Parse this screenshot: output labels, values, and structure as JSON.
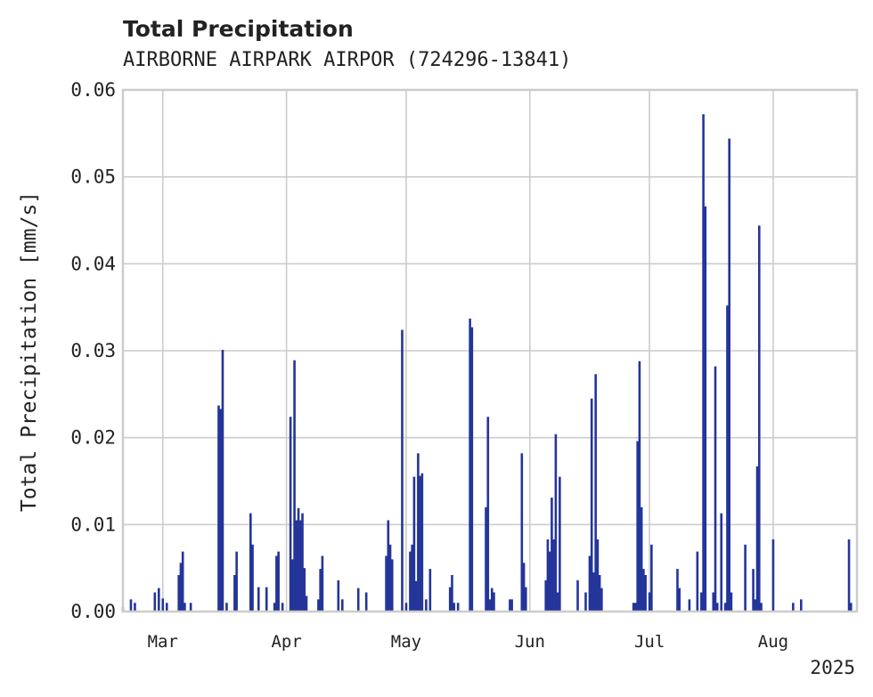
{
  "chart_data": {
    "type": "bar",
    "title": "Total Precipitation",
    "subtitle": "AIRBORNE AIRPARK AIRPOR (724296-13841)",
    "ylabel": "Total Precipitation [mm/s]",
    "xlabel": "",
    "ylim": [
      0,
      0.06
    ],
    "yticks": [
      "0.00",
      "0.01",
      "0.02",
      "0.03",
      "0.04",
      "0.05",
      "0.06"
    ],
    "xlim": [
      "2025-02-19",
      "2025-08-22"
    ],
    "xticks": [
      {
        "date": "2025-03-01",
        "label": "Mar"
      },
      {
        "date": "2025-04-01",
        "label": "Apr"
      },
      {
        "date": "2025-05-01",
        "label": "May"
      },
      {
        "date": "2025-06-01",
        "label": "Jun"
      },
      {
        "date": "2025-07-01",
        "label": "Jul"
      },
      {
        "date": "2025-08-01",
        "label": "Aug"
      }
    ],
    "x_offset_label": "2025",
    "grid": true,
    "bar_color": "#24359a",
    "series": [
      {
        "points": [
          [
            "2025-02-19",
            0.0005
          ],
          [
            "2025-02-21",
            0.0014
          ],
          [
            "2025-02-22",
            0.001
          ],
          [
            "2025-02-27",
            0.0022
          ],
          [
            "2025-02-28",
            0.0027
          ],
          [
            "2025-03-01",
            0.0015
          ],
          [
            "2025-03-02",
            0.001
          ],
          [
            "2025-03-05",
            0.0042
          ],
          [
            "2025-03-05T12",
            0.0056
          ],
          [
            "2025-03-06",
            0.0069
          ],
          [
            "2025-03-06T12",
            0.001
          ],
          [
            "2025-03-08",
            0.001
          ],
          [
            "2025-03-15",
            0.0237
          ],
          [
            "2025-03-15T12",
            0.0233
          ],
          [
            "2025-03-16",
            0.0301
          ],
          [
            "2025-03-17",
            0.001
          ],
          [
            "2025-03-19",
            0.0042
          ],
          [
            "2025-03-19T12",
            0.0069
          ],
          [
            "2025-03-23",
            0.0113
          ],
          [
            "2025-03-23T12",
            0.0077
          ],
          [
            "2025-03-25",
            0.0028
          ],
          [
            "2025-03-27",
            0.0028
          ],
          [
            "2025-03-29",
            0.001
          ],
          [
            "2025-03-29T12",
            0.0064
          ],
          [
            "2025-03-30",
            0.0069
          ],
          [
            "2025-03-31",
            0.001
          ],
          [
            "2025-04-02",
            0.0224
          ],
          [
            "2025-04-02T12",
            0.006
          ],
          [
            "2025-04-03",
            0.0289
          ],
          [
            "2025-04-03T12",
            0.0105
          ],
          [
            "2025-04-04",
            0.0119
          ],
          [
            "2025-04-04T12",
            0.0105
          ],
          [
            "2025-04-05",
            0.0113
          ],
          [
            "2025-04-05T12",
            0.005
          ],
          [
            "2025-04-06",
            0.0018
          ],
          [
            "2025-04-09",
            0.0014
          ],
          [
            "2025-04-09T12",
            0.0049
          ],
          [
            "2025-04-10",
            0.0064
          ],
          [
            "2025-04-14",
            0.0036
          ],
          [
            "2025-04-15",
            0.0014
          ],
          [
            "2025-04-19",
            0.0027
          ],
          [
            "2025-04-21",
            0.0022
          ],
          [
            "2025-04-26",
            0.0064
          ],
          [
            "2025-04-26T12",
            0.0105
          ],
          [
            "2025-04-27",
            0.0077
          ],
          [
            "2025-04-27T12",
            0.006
          ],
          [
            "2025-04-30",
            0.0324
          ],
          [
            "2025-05-01",
            0.001
          ],
          [
            "2025-05-02",
            0.0069
          ],
          [
            "2025-05-02T12",
            0.0077
          ],
          [
            "2025-05-03",
            0.0155
          ],
          [
            "2025-05-03T12",
            0.0035
          ],
          [
            "2025-05-04",
            0.0182
          ],
          [
            "2025-05-04T12",
            0.0156
          ],
          [
            "2025-05-05",
            0.0159
          ],
          [
            "2025-05-06",
            0.0014
          ],
          [
            "2025-05-07",
            0.0049
          ],
          [
            "2025-05-12",
            0.0028
          ],
          [
            "2025-05-12T12",
            0.0042
          ],
          [
            "2025-05-13",
            0.001
          ],
          [
            "2025-05-14",
            0.001
          ],
          [
            "2025-05-17",
            0.0337
          ],
          [
            "2025-05-17T12",
            0.0327
          ],
          [
            "2025-05-21",
            0.012
          ],
          [
            "2025-05-21T12",
            0.0224
          ],
          [
            "2025-05-22",
            0.0014
          ],
          [
            "2025-05-22T12",
            0.0027
          ],
          [
            "2025-05-23",
            0.0022
          ],
          [
            "2025-05-27",
            0.0014
          ],
          [
            "2025-05-27T12",
            0.0014
          ],
          [
            "2025-05-30",
            0.0182
          ],
          [
            "2025-05-30T12",
            0.0056
          ],
          [
            "2025-05-31",
            0.0028
          ],
          [
            "2025-06-05",
            0.0036
          ],
          [
            "2025-06-05T12",
            0.0083
          ],
          [
            "2025-06-06",
            0.0069
          ],
          [
            "2025-06-06T12",
            0.0131
          ],
          [
            "2025-06-07",
            0.0083
          ],
          [
            "2025-06-07T12",
            0.0204
          ],
          [
            "2025-06-08",
            0.0022
          ],
          [
            "2025-06-08T12",
            0.0155
          ],
          [
            "2025-06-13",
            0.0036
          ],
          [
            "2025-06-15",
            0.0022
          ],
          [
            "2025-06-16",
            0.0064
          ],
          [
            "2025-06-16T12",
            0.0245
          ],
          [
            "2025-06-17",
            0.0045
          ],
          [
            "2025-06-17T12",
            0.0273
          ],
          [
            "2025-06-18",
            0.0083
          ],
          [
            "2025-06-18T12",
            0.0042
          ],
          [
            "2025-06-19",
            0.0027
          ],
          [
            "2025-06-27",
            0.001
          ],
          [
            "2025-06-27T12",
            0.001
          ],
          [
            "2025-06-28",
            0.0196
          ],
          [
            "2025-06-28T12",
            0.0288
          ],
          [
            "2025-06-29",
            0.012
          ],
          [
            "2025-06-29T12",
            0.0049
          ],
          [
            "2025-06-30",
            0.0042
          ],
          [
            "2025-07-01",
            0.0022
          ],
          [
            "2025-07-01T12",
            0.0077
          ],
          [
            "2025-07-08",
            0.0049
          ],
          [
            "2025-07-08T12",
            0.0027
          ],
          [
            "2025-07-11",
            0.0014
          ],
          [
            "2025-07-13",
            0.0069
          ],
          [
            "2025-07-14",
            0.0022
          ],
          [
            "2025-07-14T12",
            0.0572
          ],
          [
            "2025-07-15",
            0.0466
          ],
          [
            "2025-07-17",
            0.0022
          ],
          [
            "2025-07-17T12",
            0.0282
          ],
          [
            "2025-07-18",
            0.001
          ],
          [
            "2025-07-19",
            0.0113
          ],
          [
            "2025-07-20",
            0.001
          ],
          [
            "2025-07-20T12",
            0.0352
          ],
          [
            "2025-07-21",
            0.0544
          ],
          [
            "2025-07-21T12",
            0.0022
          ],
          [
            "2025-07-25",
            0.0077
          ],
          [
            "2025-07-27",
            0.0049
          ],
          [
            "2025-07-27T12",
            0.0014
          ],
          [
            "2025-07-28",
            0.0167
          ],
          [
            "2025-07-28T12",
            0.0444
          ],
          [
            "2025-07-29",
            0.001
          ],
          [
            "2025-08-01",
            0.0083
          ],
          [
            "2025-08-06",
            0.001
          ],
          [
            "2025-08-08",
            0.0014
          ],
          [
            "2025-08-20",
            0.0083
          ],
          [
            "2025-08-20T12",
            0.001
          ]
        ]
      }
    ]
  }
}
